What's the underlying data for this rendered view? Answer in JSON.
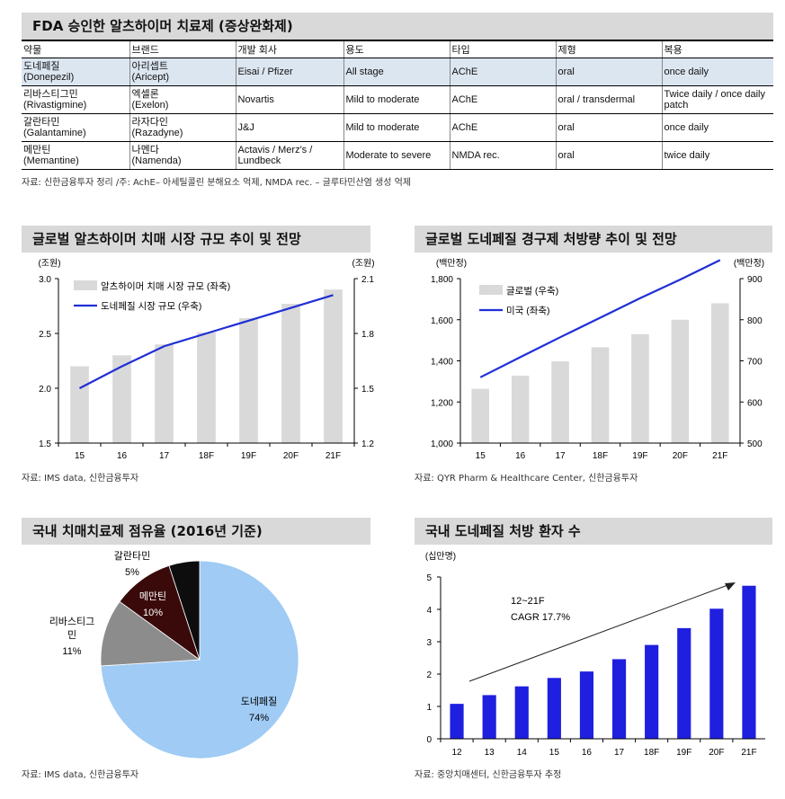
{
  "table_section": {
    "title": "FDA 승인한 알츠하이머 치료제 (증상완화제)",
    "headers": [
      "약물",
      "브랜드",
      "개발 회사",
      "용도",
      "타입",
      "제형",
      "복용"
    ],
    "rows": [
      {
        "drug_ko": "도네페질",
        "drug_en": "(Donepezil)",
        "brand_ko": "아리셉트",
        "brand_en": "(Aricept)",
        "company": "Eisai / Pfizer",
        "use": "All stage",
        "type": "AChE",
        "form": "oral",
        "dosing": "once daily"
      },
      {
        "drug_ko": "리바스티그민",
        "drug_en": "(Rivastigmine)",
        "brand_ko": "엑셀론",
        "brand_en": "(Exelon)",
        "company": "Novartis",
        "use": "Mild to moderate",
        "type": "AChE",
        "form": "oral / transdermal",
        "dosing": "Twice daily / once daily patch"
      },
      {
        "drug_ko": "갈란타민",
        "drug_en": "(Galantamine)",
        "brand_ko": "라자다인",
        "brand_en": "(Razadyne)",
        "company": "J&J",
        "use": "Mild to moderate",
        "type": "AChE",
        "form": "oral",
        "dosing": "once daily"
      },
      {
        "drug_ko": "메만틴",
        "drug_en": "(Memantine)",
        "brand_ko": "나멘다",
        "brand_en": "(Namenda)",
        "company": "Actavis / Merz's / Lundbeck",
        "use": "Moderate to severe",
        "type": "NMDA rec.",
        "form": "oral",
        "dosing": "twice daily"
      }
    ],
    "source": "자료: 신한금융투자 정리 /주:  AchE– 아세틸콜린 분해요소 억제, NMDA rec. – 글루타민산염 생성 억제"
  },
  "chart_data": [
    {
      "type": "bar",
      "title": "글로벌 알츠하이머 치매 시장 규모 추이 및 전망",
      "left_unit": "(조원)",
      "right_unit": "(조원)",
      "categories": [
        "15",
        "16",
        "17",
        "18F",
        "19F",
        "20F",
        "21F"
      ],
      "series": [
        {
          "name": "알츠하이머 치매 시장 규모 (좌축)",
          "kind": "bar",
          "axis": "left",
          "color": "#d9d9d9",
          "values": [
            2.2,
            2.3,
            2.4,
            2.51,
            2.64,
            2.77,
            2.9
          ]
        },
        {
          "name": "도네페질 시장 규모 (우축)",
          "kind": "line",
          "axis": "right",
          "color": "#1f2fd6",
          "values": [
            1.5,
            1.62,
            1.73,
            1.8,
            1.87,
            1.94,
            2.01
          ]
        }
      ],
      "ylim_left": [
        1.5,
        3.0
      ],
      "yticks_left": [
        "1.5",
        "2.0",
        "2.5",
        "3.0"
      ],
      "ylim_right": [
        1.2,
        2.1
      ],
      "yticks_right": [
        "1.2",
        "1.5",
        "1.8",
        "2.1"
      ],
      "source": "자료: IMS data, 신한금융투자"
    },
    {
      "type": "bar",
      "title": "글로벌 도네페질 경구제 처방량 추이 및 전망",
      "left_unit": "(백만정)",
      "right_unit": "(백만정)",
      "categories": [
        "15",
        "16",
        "17",
        "18F",
        "19F",
        "20F",
        "21F"
      ],
      "series": [
        {
          "name": "글로벌 (우축)",
          "kind": "bar",
          "axis": "right",
          "color": "#d9d9d9",
          "values": [
            632,
            664,
            699,
            733,
            765,
            800,
            840
          ]
        },
        {
          "name": "미국 (좌축)",
          "kind": "line",
          "axis": "left",
          "color": "#1f2fd6",
          "values": [
            1320,
            1418,
            1515,
            1610,
            1705,
            1795,
            1890
          ]
        }
      ],
      "ylim_left": [
        1000,
        1800
      ],
      "yticks_left": [
        "1,000",
        "1,200",
        "1,400",
        "1,600",
        "1,800"
      ],
      "ylim_right": [
        500,
        900
      ],
      "yticks_right": [
        "500",
        "600",
        "700",
        "800",
        "900"
      ],
      "source": "자료: QYR Pharm & Healthcare Center, 신한금융투자"
    },
    {
      "type": "pie",
      "title": "국내 치매치료제 점유율 (2016년 기준)",
      "slices": [
        {
          "label": "도네페질",
          "value": 74,
          "pct_label": "74%",
          "color": "#9fcbf5"
        },
        {
          "label": "리바스티그민",
          "value": 11,
          "pct_label": "11%",
          "color": "#8c8c8c"
        },
        {
          "label": "메만틴",
          "value": 10,
          "pct_label": "10%",
          "color": "#3a0a0a"
        },
        {
          "label": "갈란타민",
          "value": 5,
          "pct_label": "5%",
          "color": "#0d0d0d"
        }
      ],
      "source": "자료: IMS data, 신한금융투자"
    },
    {
      "type": "bar",
      "title": "국내 도네페질 처방 환자 수",
      "unit": "(십만명)",
      "categories": [
        "12",
        "13",
        "14",
        "15",
        "16",
        "17",
        "18F",
        "19F",
        "20F",
        "21F"
      ],
      "series": [
        {
          "name": "처방 환자 수",
          "color": "#1f1fe0",
          "values": [
            1.08,
            1.35,
            1.62,
            1.88,
            2.08,
            2.46,
            2.9,
            3.42,
            4.02,
            4.73
          ]
        }
      ],
      "ylim": [
        0,
        5
      ],
      "yticks": [
        "0",
        "1",
        "2",
        "3",
        "4",
        "5"
      ],
      "annotation": [
        "12~21F",
        "CAGR 17.7%"
      ],
      "source": "자료: 중앙치매센터, 신한금융투자 추정"
    }
  ]
}
